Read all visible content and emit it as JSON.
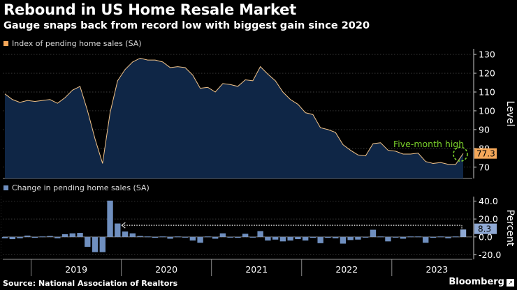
{
  "header": {
    "title": "Rebound in US Home Resale Market",
    "subtitle": "Gauge snaps back from record low with biggest gain since 2020"
  },
  "colors": {
    "background": "#000000",
    "area_fill": "#0f2646",
    "area_line": "#f2c48a",
    "legend_top": "#f5a85a",
    "bar": "#6f8fbf",
    "annotation": "#7bd12b",
    "last_bar": "#8fa9d4",
    "grid": "#555555"
  },
  "footer": {
    "source": "Source: National Association of Realtors",
    "brand": "Bloomberg"
  },
  "chart_data": [
    {
      "type": "area",
      "title": "Index of pending home sales (SA)",
      "ylabel": "Level",
      "ylim": [
        64,
        133
      ],
      "yticks": [
        70,
        80,
        90,
        100,
        110,
        120,
        130
      ],
      "x_start": "2018-09",
      "values": [
        109,
        106,
        104.5,
        105.5,
        105,
        105.5,
        106,
        104,
        107,
        111,
        113,
        100,
        85,
        72,
        99,
        116,
        122,
        126,
        128,
        127,
        127,
        126,
        123,
        123.5,
        123,
        119,
        112,
        112.5,
        110,
        114.5,
        114,
        113,
        116.5,
        116,
        123.5,
        119.5,
        116,
        110,
        106,
        103.5,
        99,
        98,
        91,
        90,
        88.5,
        82,
        79,
        76.5,
        76,
        82.5,
        83,
        79,
        78.5,
        77,
        77,
        77.5,
        73,
        72,
        72.5,
        71.5,
        71.5,
        77.3
      ],
      "last_value_label": "77.3",
      "annotation": "Five-month high"
    },
    {
      "type": "bar",
      "title": "Change in pending home sales (SA)",
      "ylabel": "Percent",
      "ylim": [
        -25,
        45
      ],
      "yticks": [
        -20.0,
        0.0,
        20.0,
        40.0
      ],
      "ytick_labels": [
        "-20.0",
        "0.0",
        "20.0",
        "40.0"
      ],
      "x_start": "2018-09",
      "values": [
        -1.5,
        -2.5,
        -1.5,
        1.5,
        -1,
        0.5,
        1,
        -1.5,
        3,
        4,
        4.5,
        -11,
        -17,
        -17,
        40.5,
        15,
        6,
        4,
        1,
        0.5,
        -1,
        0.5,
        -2,
        0.5,
        -0.5,
        -4,
        -6.5,
        0.5,
        -2,
        4,
        -0.5,
        -1,
        3.5,
        -0.5,
        6.5,
        -4,
        -3,
        -5,
        -4,
        -2.5,
        -4,
        -1,
        -7,
        -1,
        -1.5,
        -7.5,
        -3.5,
        -3,
        -0.5,
        8,
        0.5,
        -5,
        -0.5,
        -2,
        0.5,
        0.5,
        -6.5,
        -1,
        0.5,
        -1.5,
        0.5,
        8.3
      ],
      "last_value_label": "8.3"
    }
  ],
  "x_axis": {
    "years": [
      "2019",
      "2020",
      "2021",
      "2022",
      "2023"
    ]
  }
}
